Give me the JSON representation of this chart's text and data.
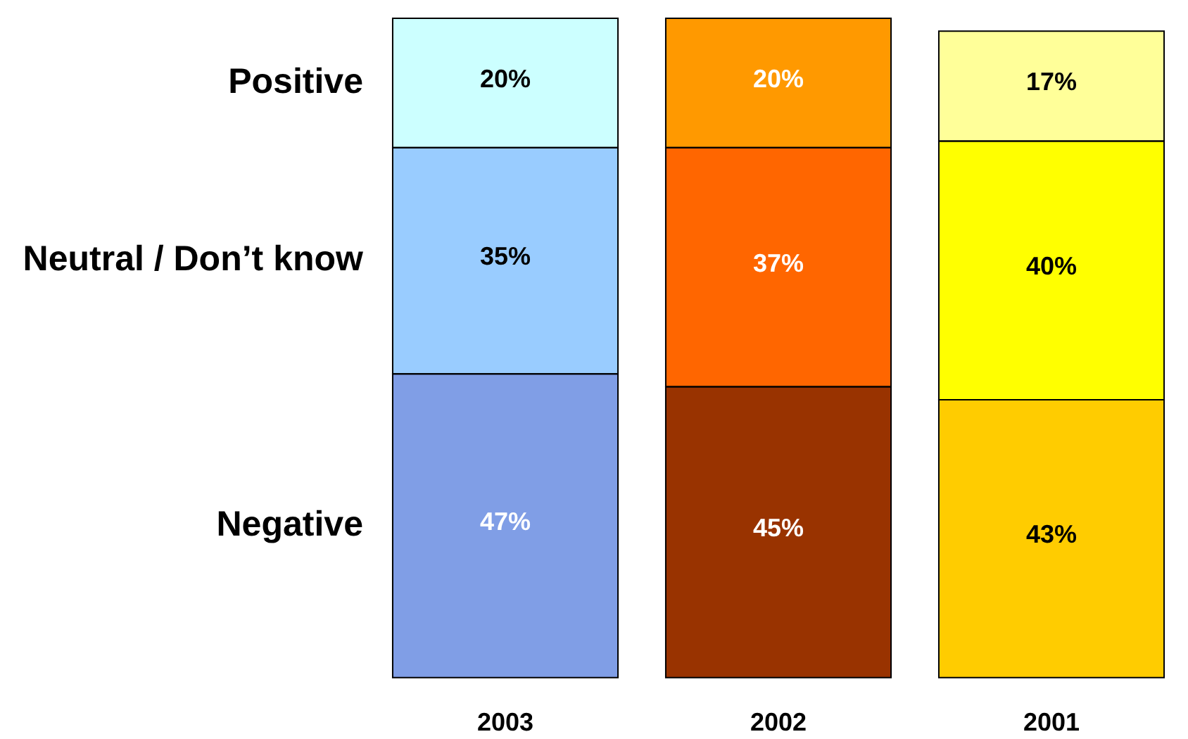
{
  "chart_data": {
    "type": "bar",
    "stacked": true,
    "tick_labels": "x",
    "categories": [
      "2003",
      "2002",
      "2001"
    ],
    "series": [
      {
        "name": "Negative",
        "colors": [
          "#809ee6",
          "#993300",
          "#ffcc00"
        ],
        "values": [
          47,
          45,
          43
        ],
        "value_labels": [
          "47%",
          "45%",
          "43%"
        ]
      },
      {
        "name": "Neutral / Don’t know",
        "colors": [
          "#99ccff",
          "#ff6600",
          "#ffff00"
        ],
        "values": [
          35,
          37,
          40
        ],
        "value_labels": [
          "35%",
          "37%",
          "40%"
        ]
      },
      {
        "name": "Positive",
        "colors": [
          "#ccffff",
          "#ff9900",
          "#ffff99"
        ],
        "values": [
          20,
          20,
          17
        ],
        "value_labels": [
          "20%",
          "20%",
          "17%"
        ]
      }
    ]
  }
}
